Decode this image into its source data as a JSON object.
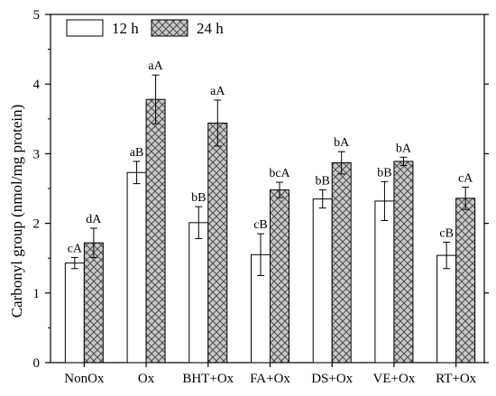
{
  "chart_data": {
    "type": "bar",
    "ylabel": "Carbonyl group (nmol/mg protein)",
    "ylim": [
      0,
      5
    ],
    "yticks": [
      0,
      1,
      2,
      3,
      4,
      5
    ],
    "categories": [
      "NonOx",
      "Ox",
      "BHT+Ox",
      "FA+Ox",
      "DS+Ox",
      "VE+Ox",
      "RT+Ox"
    ],
    "legend_position": "top-left",
    "series": [
      {
        "name": "12 h",
        "pattern": "solid-white",
        "values": [
          1.43,
          2.73,
          2.01,
          1.55,
          2.35,
          2.32,
          1.54
        ],
        "errors": [
          0.08,
          0.16,
          0.23,
          0.3,
          0.13,
          0.28,
          0.19
        ],
        "labels": [
          "cA",
          "aB",
          "bB",
          "cB",
          "bB",
          "bB",
          "cB"
        ]
      },
      {
        "name": "24 h",
        "pattern": "crosshatch-gray",
        "values": [
          1.72,
          3.78,
          3.44,
          2.48,
          2.87,
          2.89,
          2.36
        ],
        "errors": [
          0.21,
          0.35,
          0.33,
          0.11,
          0.16,
          0.06,
          0.16
        ],
        "labels": [
          "dA",
          "aA",
          "aA",
          "bcA",
          "bA",
          "bA",
          "cA"
        ]
      }
    ]
  }
}
